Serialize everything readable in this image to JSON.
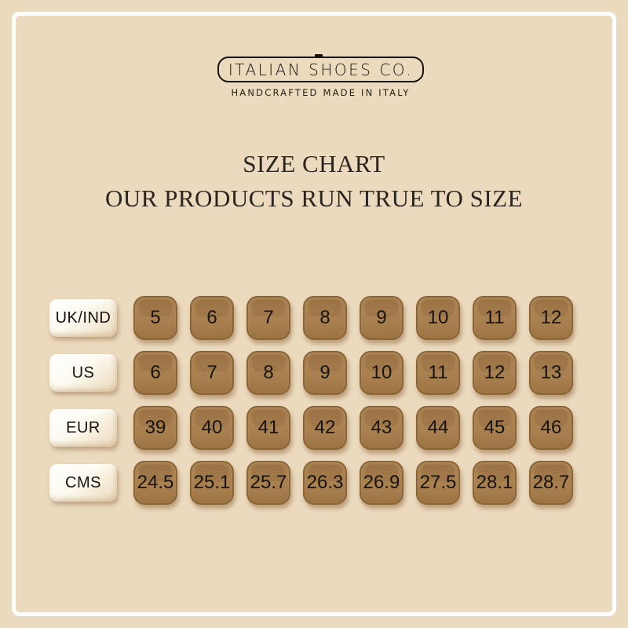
{
  "page": {
    "background": "#ecdabf",
    "frame_color": "#ffffff"
  },
  "brand": {
    "name": "ITALIAN SHOES CO.",
    "tagline": "HANDCRAFTED MADE IN ITALY"
  },
  "heading": {
    "title": "SIZE CHART",
    "subtitle": "OUR PRODUCTS RUN TRUE TO SIZE"
  },
  "colors": {
    "tile_brown": "#a87f4e",
    "tile_brown_border": "#8a6434",
    "tile_cream": "#fdf8ec",
    "text": "#171310"
  },
  "chart_data": {
    "type": "table",
    "title": "SIZE CHART",
    "subtitle": "OUR PRODUCTS RUN TRUE TO SIZE",
    "row_headers": [
      "UK/IND",
      "US",
      "EUR",
      "CMS"
    ],
    "rows": [
      {
        "label": "UK/IND",
        "values": [
          "5",
          "6",
          "7",
          "8",
          "9",
          "10",
          "11",
          "12"
        ]
      },
      {
        "label": "US",
        "values": [
          "6",
          "7",
          "8",
          "9",
          "10",
          "11",
          "12",
          "13"
        ]
      },
      {
        "label": "EUR",
        "values": [
          "39",
          "40",
          "41",
          "42",
          "43",
          "44",
          "45",
          "46"
        ]
      },
      {
        "label": "CMS",
        "values": [
          "24.5",
          "25.1",
          "25.7",
          "26.3",
          "26.9",
          "27.5",
          "28.1",
          "28.7"
        ]
      }
    ]
  }
}
